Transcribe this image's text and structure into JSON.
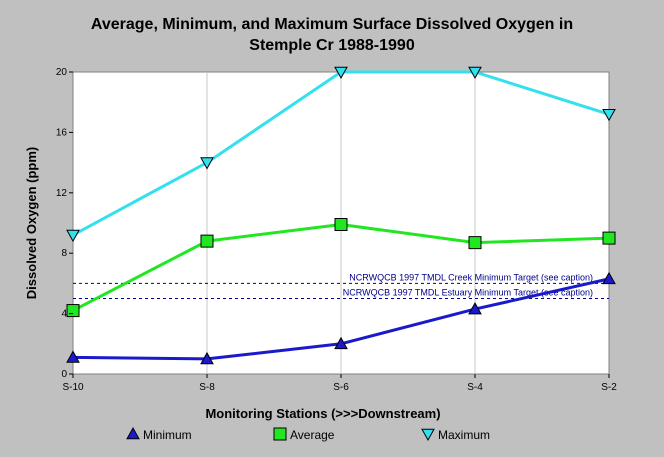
{
  "chart_data": {
    "type": "line",
    "title_line1": "Average, Minimum, and Maximum Surface Dissolved Oxygen in",
    "title_line2": "Stemple Cr 1988-1990",
    "xlabel": "Monitoring Stations (>>>Downstream)",
    "ylabel": "Dissolved Oxygen (ppm)",
    "categories": [
      "S-10",
      "S-8",
      "S-6",
      "S-4",
      "S-2"
    ],
    "ylim": [
      0,
      20
    ],
    "yticks": [
      0,
      4,
      8,
      12,
      16,
      20
    ],
    "grid": "vertical",
    "series": [
      {
        "name": "Minimum",
        "marker": "triangle-up",
        "color": "#1a1acc",
        "values": [
          1.1,
          1.0,
          2.0,
          4.3,
          6.3
        ]
      },
      {
        "name": "Average",
        "marker": "square",
        "color": "#22e622",
        "values": [
          4.2,
          8.8,
          9.9,
          8.7,
          9.0
        ]
      },
      {
        "name": "Maximum",
        "marker": "triangle-down",
        "color": "#33e0ee",
        "values": [
          9.2,
          14.0,
          20.0,
          20.0,
          17.2
        ]
      }
    ],
    "reference_lines": [
      {
        "label": "NCRWQCB 1997 TMDL Creek Minimum Target (see caption)",
        "value": 6.0,
        "color": "#00008b"
      },
      {
        "label": "NCRWQCB 1997 TMDL Estuary Minimum Target (see caption)",
        "value": 5.0,
        "color": "#00008b"
      }
    ],
    "legend_position": "bottom"
  }
}
